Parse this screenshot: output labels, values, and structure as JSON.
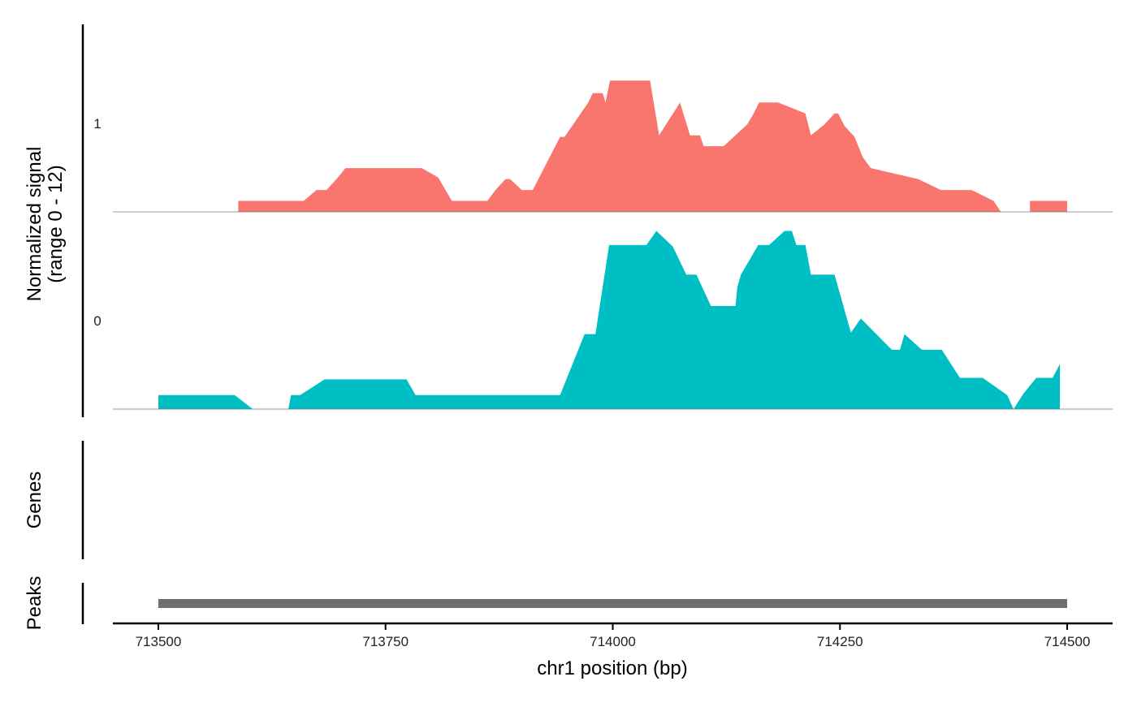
{
  "chart_data": {
    "type": "area",
    "ylabel": [
      "Normalized signal",
      "(range 0 - 12)"
    ],
    "xlabel": "chr1 position (bp)",
    "xlim": [
      713450,
      714550
    ],
    "xticks": [
      713500,
      713750,
      714000,
      714250,
      714500
    ],
    "ylim": [
      0,
      12
    ],
    "series": [
      {
        "name": "1",
        "color": "#F8766D",
        "x": [
          713588,
          713588,
          713660,
          713674,
          713685,
          713696,
          713706,
          713790,
          713808,
          713823,
          713862,
          713871,
          713882,
          713887,
          713900,
          713912,
          713942,
          713947,
          713973,
          713978,
          713989,
          713992,
          713997,
          714041,
          714051,
          714074,
          714085,
          714096,
          714100,
          714122,
          714148,
          714155,
          714161,
          714182,
          714212,
          714218,
          714233,
          714244,
          714248,
          714255,
          714266,
          714275,
          714284,
          714336,
          714361,
          714395,
          714419,
          714427,
          714459,
          714459,
          714500,
          714500
        ],
        "values": [
          0,
          0.7,
          0.7,
          1.4,
          1.4,
          2.1,
          2.8,
          2.8,
          2.2,
          0.7,
          0.7,
          1.4,
          2.1,
          2.1,
          1.4,
          1.4,
          4.8,
          4.8,
          7.0,
          7.6,
          7.6,
          7.0,
          8.4,
          8.4,
          4.9,
          7.0,
          4.9,
          4.9,
          4.2,
          4.2,
          5.6,
          6.3,
          7.0,
          7.0,
          6.3,
          4.9,
          5.6,
          6.3,
          6.3,
          5.5,
          4.8,
          3.5,
          2.8,
          2.1,
          1.4,
          1.4,
          0.7,
          0,
          0,
          0.7,
          0.7,
          0
        ]
      },
      {
        "name": "0",
        "color": "#00BFC4",
        "x": [
          713500,
          713500,
          713584,
          713604,
          713643,
          713646,
          713656,
          713683,
          713773,
          713783,
          713942,
          713969,
          713981,
          713996,
          714037,
          714048,
          714059,
          714066,
          714081,
          714092,
          714108,
          714135,
          714137,
          714141,
          714160,
          714172,
          714189,
          714197,
          714202,
          714212,
          714218,
          714244,
          714262,
          714273,
          714307,
          714316,
          714321,
          714340,
          714362,
          714382,
          714407,
          714434,
          714441,
          714452,
          714466,
          714484,
          714492,
          714492
        ],
        "values": [
          0,
          0.9,
          0.9,
          0,
          0,
          0.9,
          0.9,
          1.9,
          1.9,
          0.9,
          0.9,
          4.8,
          4.8,
          10.5,
          10.5,
          11.4,
          10.8,
          10.4,
          8.6,
          8.6,
          6.6,
          6.6,
          7.8,
          8.6,
          10.5,
          10.5,
          11.4,
          11.4,
          10.5,
          10.5,
          8.6,
          8.6,
          4.9,
          5.8,
          3.8,
          3.8,
          4.8,
          3.8,
          3.8,
          2.0,
          2.0,
          0.9,
          0,
          1.0,
          2.0,
          2.0,
          2.9,
          0
        ]
      }
    ],
    "genes_label": "Genes",
    "peaks": {
      "label": "Peaks",
      "start": 713500,
      "end": 714500,
      "color": "#6E6E6E"
    }
  }
}
